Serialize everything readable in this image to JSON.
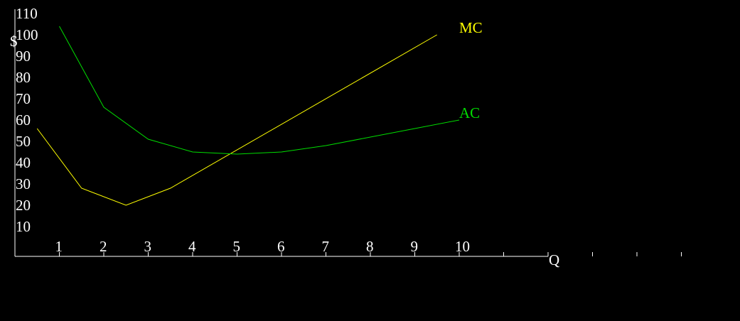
{
  "chart_data": {
    "type": "line",
    "ylabel": "$",
    "xlabel": "Q",
    "xlim": [
      0,
      12
    ],
    "ylim": [
      -3,
      113
    ],
    "xticks": [
      1,
      2,
      3,
      4,
      5,
      6,
      7,
      8,
      9,
      10
    ],
    "minor_xticks": [
      11,
      12,
      13,
      14,
      15
    ],
    "yticks": [
      10,
      20,
      30,
      40,
      50,
      60,
      70,
      80,
      90,
      100,
      110
    ],
    "axis_color": "#ffffff",
    "series": [
      {
        "name": "MC",
        "color": "#ffff00",
        "x": [
          0.5,
          1.5,
          2.5,
          3.5,
          9.5
        ],
        "values": [
          57,
          29,
          21,
          29,
          101
        ]
      },
      {
        "name": "AC",
        "color": "#00dd00",
        "x": [
          1,
          2,
          3,
          4,
          5,
          6,
          7,
          8,
          9,
          10
        ],
        "values": [
          105,
          67,
          52,
          46,
          45,
          46,
          49,
          53,
          57,
          61
        ]
      }
    ]
  }
}
